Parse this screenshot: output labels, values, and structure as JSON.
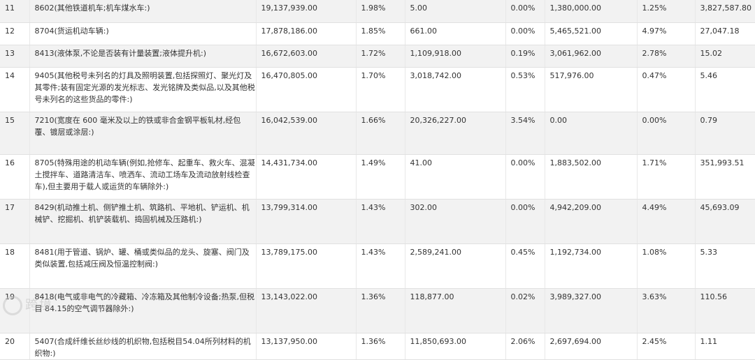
{
  "rows": [
    {
      "no": "11",
      "item": "8602(其他铁道机车;机车煤水车:)",
      "amount": "19,137,939.00",
      "share": "1.98%",
      "c5": "5.00",
      "c6": "0.00%",
      "c7": "1,380,000.00",
      "c8": "1.25%",
      "c9": "3,827,587.80"
    },
    {
      "no": "12",
      "item": "8704(货运机动车辆:)",
      "amount": "17,878,186.00",
      "share": "1.85%",
      "c5": "661.00",
      "c6": "0.00%",
      "c7": "5,465,521.00",
      "c8": "4.97%",
      "c9": "27,047.18"
    },
    {
      "no": "13",
      "item": "8413(液体泵,不论是否装有计量装置;液体提升机:)",
      "amount": "16,672,603.00",
      "share": "1.72%",
      "c5": "1,109,918.00",
      "c6": "0.19%",
      "c7": "3,061,962.00",
      "c8": "2.78%",
      "c9": "15.02"
    },
    {
      "no": "14",
      "item": "9405(其他税号未列名的灯具及照明装置,包括探照灯、聚光灯及其零件;装有固定光源的发光标志、发光铭牌及类似品,以及其他税号未列名的这些货品的零件:)",
      "amount": "16,470,805.00",
      "share": "1.70%",
      "c5": "3,018,742.00",
      "c6": "0.53%",
      "c7": "517,976.00",
      "c8": "0.47%",
      "c9": "5.46"
    },
    {
      "no": "15",
      "item": "7210(宽度在 600 毫米及以上的铁或非合金钢平板轧材,经包覆、镀层或涂层:)",
      "amount": "16,042,539.00",
      "share": "1.66%",
      "c5": "20,326,227.00",
      "c6": "3.54%",
      "c7": "0.00",
      "c8": "0.00%",
      "c9": "0.79"
    },
    {
      "no": "16",
      "item": "8705(特殊用途的机动车辆(例如,抢修车、起重车、救火车、混凝土搅拌车、道路清洁车、喷洒车、流动工场车及流动放射线检查车),但主要用于载人或运货的车辆除外:)",
      "amount": "14,431,734.00",
      "share": "1.49%",
      "c5": "41.00",
      "c6": "0.00%",
      "c7": "1,883,502.00",
      "c8": "1.71%",
      "c9": "351,993.51"
    },
    {
      "no": "17",
      "item": "8429(机动推土机、侧铲推土机、筑路机、平地机、铲运机、机械铲、挖掘机、机铲装载机、捣固机械及压路机:)",
      "amount": "13,799,314.00",
      "share": "1.43%",
      "c5": "302.00",
      "c6": "0.00%",
      "c7": "4,942,209.00",
      "c8": "4.49%",
      "c9": "45,693.09"
    },
    {
      "no": "18",
      "item": "8481(用于管道、锅炉、罐、桶或类似品的龙头、旋塞、阀门及类似装置,包括减压阀及恒温控制阀:)",
      "amount": "13,789,175.00",
      "share": "1.43%",
      "c5": "2,589,241.00",
      "c6": "0.45%",
      "c7": "1,192,734.00",
      "c8": "1.08%",
      "c9": "5.33"
    },
    {
      "no": "19",
      "item": "8418(电气或非电气的冷藏箱、冷冻箱及其他制冷设备;热泵,但税目 84.15的空气调节器除外:)",
      "amount": "13,143,022.00",
      "share": "1.36%",
      "c5": "118,877.00",
      "c6": "0.02%",
      "c7": "3,989,327.00",
      "c8": "3.63%",
      "c9": "110.56"
    },
    {
      "no": "20",
      "item": "5407(合成纤维长丝纱线的机织物,包括税目54.04所列材料的机织物:)",
      "amount": "13,137,950.00",
      "share": "1.36%",
      "c5": "11,850,693.00",
      "c6": "2.06%",
      "c7": "2,697,694.00",
      "c8": "2.45%",
      "c9": "1.11"
    }
  ],
  "watermark": "跨境"
}
